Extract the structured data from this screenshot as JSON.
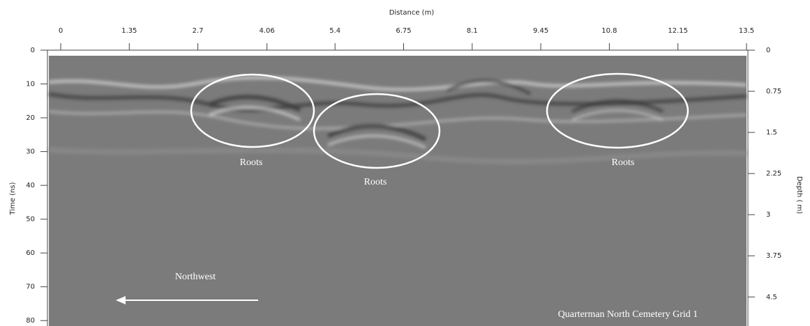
{
  "chart_data": {
    "type": "radargram",
    "x_label": "Distance (m)",
    "y_label": "Time (ns)",
    "y2_label": "Depth ( m)",
    "xlim": [
      0,
      13.5
    ],
    "xticks": [
      0,
      1.35,
      2.7,
      4.06,
      5.4,
      6.75,
      8.1,
      9.45,
      10.8,
      12.15,
      13.5
    ],
    "ylim": [
      0,
      81.6
    ],
    "yticks": [
      0,
      10,
      20,
      30,
      40,
      50,
      60,
      70,
      80
    ],
    "y2lim": [
      0,
      5.03
    ],
    "y2ticks": [
      0,
      0.75,
      1.5,
      2.25,
      3,
      3.75,
      4.5
    ],
    "annotations": [
      "Roots",
      "Roots",
      "Roots",
      "Northwest",
      "Quarterman North Cemetery Grid 1"
    ]
  }
}
